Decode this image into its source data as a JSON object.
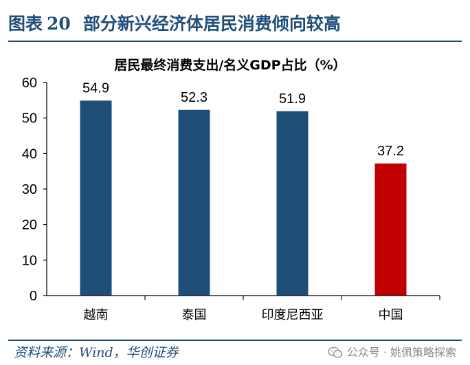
{
  "figure": {
    "label": "图表",
    "number": "20",
    "title": "部分新兴经济体居民消费倾向较高"
  },
  "chart_data": {
    "type": "bar",
    "title": "居民最终消费支出/名义GDP占比（%）",
    "categories": [
      "越南",
      "泰国",
      "印度尼西亚",
      "中国"
    ],
    "values": [
      54.9,
      52.3,
      51.9,
      37.2
    ],
    "value_labels": [
      "54.9",
      "52.3",
      "51.9",
      "37.2"
    ],
    "colors": [
      "#1f4e79",
      "#1f4e79",
      "#1f4e79",
      "#c00000"
    ],
    "ylim": [
      0,
      60
    ],
    "yticks": [
      0,
      10,
      20,
      30,
      40,
      50,
      60
    ],
    "grid": false,
    "legend": "none"
  },
  "source": "资料来源：Wind，华创证券",
  "watermark": {
    "text": "公众号 · 姚佩策略探索",
    "icon": "wechat-icon"
  }
}
